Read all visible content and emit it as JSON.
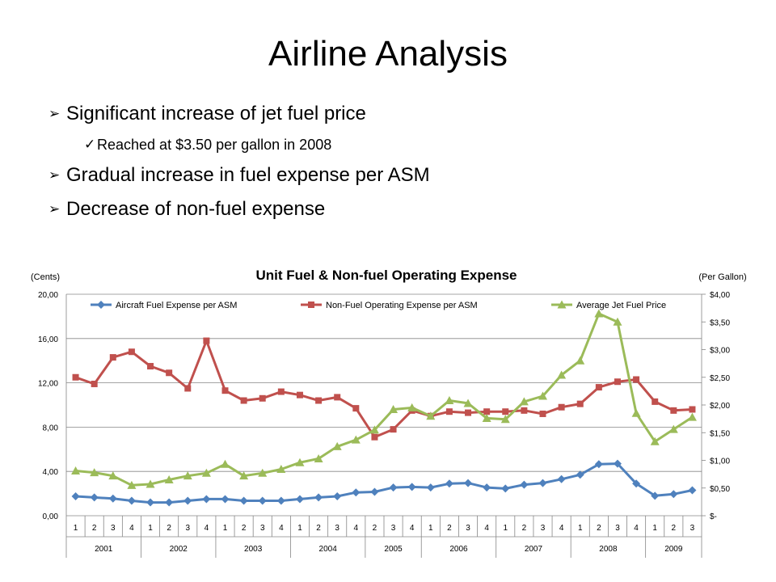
{
  "slide": {
    "title": "Airline Analysis",
    "bullets": [
      {
        "level": 1,
        "marker": "➢",
        "text": "Significant increase of jet fuel price"
      },
      {
        "level": 2,
        "marker": "✓",
        "text": "Reached at $3.50 per gallon in 2008"
      },
      {
        "level": 1,
        "marker": "➢",
        "text": "Gradual increase in fuel expense per ASM"
      },
      {
        "level": 1,
        "marker": "➢",
        "text": "Decrease of non-fuel expense"
      }
    ]
  },
  "chart_data": {
    "type": "line",
    "title": "Unit Fuel & Non-fuel Operating Expense",
    "y_left_label": "(Cents)",
    "y_right_label": "(Per Gallon)",
    "y_left_ticks": [
      "0,00",
      "4,00",
      "8,00",
      "12,00",
      "16,00",
      "20,00"
    ],
    "y_right_ticks": [
      "$-",
      "$0,50",
      "$1,00",
      "$1,50",
      "$2,00",
      "$2,50",
      "$3,00",
      "$3,50",
      "$4,00"
    ],
    "ylim_left": [
      0,
      20
    ],
    "ylim_right": [
      0,
      4
    ],
    "grid": true,
    "legend_position": "top",
    "quarters": [
      "1",
      "2",
      "3",
      "4",
      "1",
      "2",
      "3",
      "4",
      "1",
      "2",
      "3",
      "4",
      "1",
      "2",
      "3",
      "4",
      "2",
      "3",
      "4",
      "1",
      "2",
      "3",
      "4",
      "1",
      "2",
      "3",
      "4",
      "1",
      "2",
      "3",
      "4",
      "1",
      "2",
      "3"
    ],
    "years": [
      {
        "label": "2001",
        "count": 4
      },
      {
        "label": "2002",
        "count": 4
      },
      {
        "label": "2003",
        "count": 4
      },
      {
        "label": "2004",
        "count": 4
      },
      {
        "label": "2005",
        "count": 3
      },
      {
        "label": "2006",
        "count": 4
      },
      {
        "label": "2007",
        "count": 4
      },
      {
        "label": "2008",
        "count": 4
      },
      {
        "label": "2009",
        "count": 3
      }
    ],
    "series": [
      {
        "name": "Aircraft Fuel Expense per ASM",
        "axis": "left",
        "marker": "diamond",
        "color": "#4F81BD",
        "values": [
          1.75,
          1.65,
          1.55,
          1.35,
          1.2,
          1.2,
          1.35,
          1.5,
          1.5,
          1.35,
          1.35,
          1.35,
          1.5,
          1.65,
          1.75,
          2.1,
          2.15,
          2.55,
          2.6,
          2.55,
          2.9,
          2.95,
          2.55,
          2.45,
          2.8,
          2.95,
          3.3,
          3.7,
          4.65,
          4.7,
          2.9,
          1.8,
          1.95,
          2.3
        ]
      },
      {
        "name": "Non-Fuel Operating Expense per ASM",
        "axis": "left",
        "marker": "square",
        "color": "#C0504D",
        "values": [
          12.5,
          11.9,
          14.3,
          14.8,
          13.5,
          12.9,
          11.5,
          15.8,
          11.3,
          10.4,
          10.6,
          11.2,
          10.9,
          10.4,
          10.7,
          9.7,
          7.1,
          7.8,
          9.5,
          9.0,
          9.4,
          9.3,
          9.4,
          9.4,
          9.5,
          9.2,
          9.8,
          10.1,
          11.6,
          12.1,
          12.3,
          10.3,
          9.5,
          9.6
        ]
      },
      {
        "name": "Average Jet Fuel Price",
        "axis": "right",
        "marker": "triangle",
        "color": "#9BBB59",
        "values": [
          0.81,
          0.78,
          0.72,
          0.55,
          0.57,
          0.65,
          0.72,
          0.77,
          0.93,
          0.72,
          0.77,
          0.84,
          0.96,
          1.03,
          1.25,
          1.37,
          1.55,
          1.92,
          1.95,
          1.8,
          2.08,
          2.03,
          1.76,
          1.74,
          2.06,
          2.16,
          2.54,
          2.8,
          3.65,
          3.5,
          1.85,
          1.34,
          1.56,
          1.78
        ]
      }
    ]
  }
}
